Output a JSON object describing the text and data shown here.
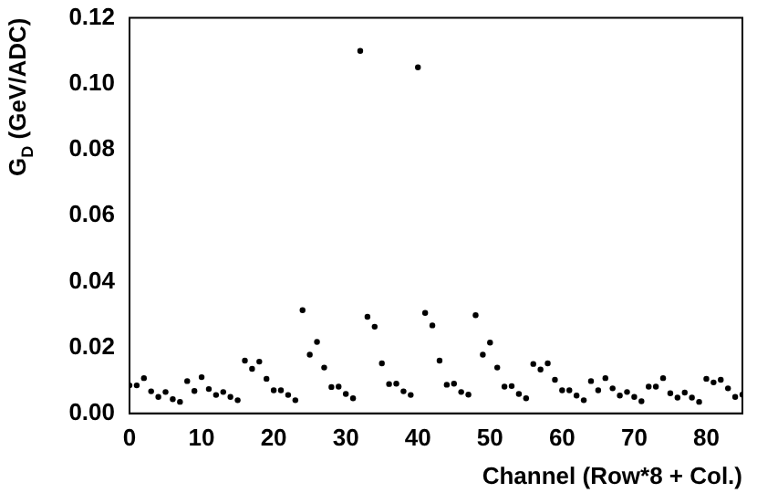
{
  "chart_data": {
    "type": "scatter",
    "xlabel": "Channel (Row*8 + Col.)",
    "ylabel": "G$_{D}$ (GeV/ADC)",
    "x": [
      0,
      1,
      2,
      3,
      4,
      5,
      6,
      7,
      8,
      9,
      10,
      11,
      12,
      13,
      14,
      15,
      16,
      17,
      18,
      19,
      20,
      21,
      22,
      23,
      24,
      25,
      26,
      27,
      28,
      29,
      30,
      31,
      32,
      33,
      34,
      35,
      36,
      37,
      38,
      39,
      40,
      41,
      42,
      43,
      44,
      45,
      46,
      47,
      48,
      49,
      50,
      51,
      52,
      53,
      54,
      55,
      56,
      57,
      58,
      59,
      60,
      61,
      62,
      63,
      64,
      65,
      66,
      67,
      68,
      69,
      70,
      71,
      72,
      73,
      74,
      75,
      76,
      77,
      78,
      79,
      80,
      81,
      82,
      83,
      84,
      85
    ],
    "values": [
      0.0085,
      0.0085,
      0.0107,
      0.0067,
      0.005,
      0.0065,
      0.0043,
      0.0035,
      0.0098,
      0.0068,
      0.011,
      0.0074,
      0.0056,
      0.0065,
      0.005,
      0.004,
      0.016,
      0.0135,
      0.0157,
      0.0105,
      0.007,
      0.007,
      0.0056,
      0.004,
      0.0313,
      0.0178,
      0.0217,
      0.0139,
      0.008,
      0.0081,
      0.0059,
      0.0046,
      0.11,
      0.0293,
      0.0263,
      0.0152,
      0.0089,
      0.009,
      0.0067,
      0.0056,
      0.105,
      0.0305,
      0.0267,
      0.016,
      0.0087,
      0.009,
      0.0065,
      0.0057,
      0.0298,
      0.0178,
      0.0215,
      0.0139,
      0.0081,
      0.0083,
      0.0059,
      0.0046,
      0.015,
      0.0133,
      0.0152,
      0.0102,
      0.007,
      0.007,
      0.0054,
      0.004,
      0.0098,
      0.007,
      0.0107,
      0.0076,
      0.0054,
      0.0065,
      0.005,
      0.0037,
      0.0081,
      0.0081,
      0.0107,
      0.0061,
      0.0048,
      0.0063,
      0.0048,
      0.0035,
      0.0105,
      0.0094,
      0.0102,
      0.0076,
      0.005,
      0.0057
    ],
    "color": "#000000",
    "marker": "circle",
    "xlim": [
      0,
      85
    ],
    "xticks": [
      0,
      10,
      20,
      30,
      40,
      50,
      60,
      70,
      80
    ],
    "ylim": [
      0,
      0.12
    ],
    "yticks": [
      {
        "value": 0,
        "label": "0.00"
      },
      {
        "value": 0.02,
        "label": "0.02"
      },
      {
        "value": 0.04,
        "label": "0.04"
      },
      {
        "value": 0.06,
        "label": "0.06"
      },
      {
        "value": 0.08,
        "label": "0.08"
      },
      {
        "value": 0.1,
        "label": "0.10"
      },
      {
        "value": 0.12,
        "label": "0.12"
      }
    ],
    "grid": false,
    "legend": false
  }
}
